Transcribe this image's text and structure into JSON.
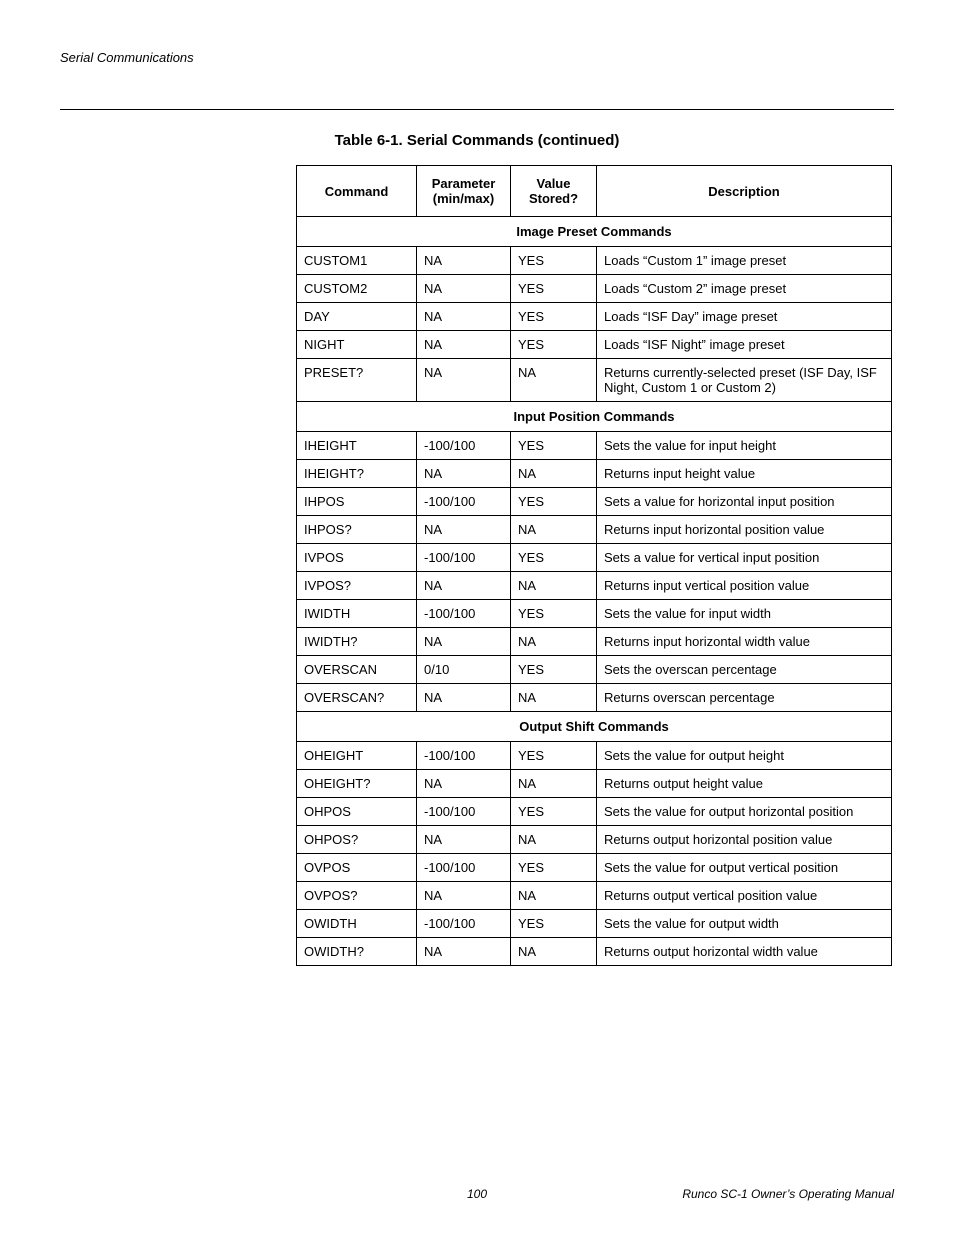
{
  "header": "Serial Communications",
  "caption": "Table 6-1. Serial Commands (continued)",
  "columns": {
    "c0": "Command",
    "c1": "Parameter (min/max)",
    "c2": "Value Stored?",
    "c3": "Description"
  },
  "sections": [
    {
      "title": "Image Preset Commands",
      "rows": [
        {
          "cmd": "CUSTOM1",
          "param": "NA",
          "stored": "YES",
          "desc": "Loads “Custom 1” image preset"
        },
        {
          "cmd": "CUSTOM2",
          "param": "NA",
          "stored": "YES",
          "desc": "Loads “Custom 2” image preset"
        },
        {
          "cmd": "DAY",
          "param": "NA",
          "stored": "YES",
          "desc": "Loads “ISF Day” image preset"
        },
        {
          "cmd": "NIGHT",
          "param": "NA",
          "stored": "YES",
          "desc": "Loads “ISF Night” image preset"
        },
        {
          "cmd": "PRESET?",
          "param": "NA",
          "stored": "NA",
          "desc": "Returns currently-selected preset (ISF Day, ISF Night, Custom 1 or Custom 2)"
        }
      ]
    },
    {
      "title": "Input Position Commands",
      "rows": [
        {
          "cmd": "IHEIGHT",
          "param": "-100/100",
          "stored": "YES",
          "desc": "Sets the value for input height"
        },
        {
          "cmd": "IHEIGHT?",
          "param": "NA",
          "stored": "NA",
          "desc": "Returns input height value"
        },
        {
          "cmd": "IHPOS",
          "param": "-100/100",
          "stored": "YES",
          "desc": "Sets a value for horizontal input position"
        },
        {
          "cmd": "IHPOS?",
          "param": "NA",
          "stored": "NA",
          "desc": "Returns input horizontal position value"
        },
        {
          "cmd": "IVPOS",
          "param": "-100/100",
          "stored": "YES",
          "desc": "Sets a value for vertical input position"
        },
        {
          "cmd": "IVPOS?",
          "param": "NA",
          "stored": "NA",
          "desc": "Returns input vertical position value"
        },
        {
          "cmd": "IWIDTH",
          "param": "-100/100",
          "stored": "YES",
          "desc": "Sets the value for input width"
        },
        {
          "cmd": "IWIDTH?",
          "param": "NA",
          "stored": "NA",
          "desc": "Returns input horizontal width value"
        },
        {
          "cmd": "OVERSCAN",
          "param": "0/10",
          "stored": "YES",
          "desc": "Sets the overscan percentage"
        },
        {
          "cmd": "OVERSCAN?",
          "param": "NA",
          "stored": "NA",
          "desc": "Returns overscan percentage"
        }
      ]
    },
    {
      "title": "Output Shift Commands",
      "rows": [
        {
          "cmd": "OHEIGHT",
          "param": "-100/100",
          "stored": "YES",
          "desc": "Sets the value for output height"
        },
        {
          "cmd": "OHEIGHT?",
          "param": "NA",
          "stored": "NA",
          "desc": "Returns output height value"
        },
        {
          "cmd": "OHPOS",
          "param": "-100/100",
          "stored": "YES",
          "desc": "Sets the value for output horizontal position"
        },
        {
          "cmd": "OHPOS?",
          "param": "NA",
          "stored": "NA",
          "desc": "Returns output horizontal position value"
        },
        {
          "cmd": "OVPOS",
          "param": "-100/100",
          "stored": "YES",
          "desc": "Sets the value for output vertical position"
        },
        {
          "cmd": "OVPOS?",
          "param": "NA",
          "stored": "NA",
          "desc": "Returns output vertical position value"
        },
        {
          "cmd": "OWIDTH",
          "param": "-100/100",
          "stored": "YES",
          "desc": "Sets the value for output width"
        },
        {
          "cmd": "OWIDTH?",
          "param": "NA",
          "stored": "NA",
          "desc": "Returns output horizontal width value"
        }
      ]
    }
  ],
  "footer": {
    "page": "100",
    "right": "Runco SC-1 Owner’s Operating Manual"
  }
}
